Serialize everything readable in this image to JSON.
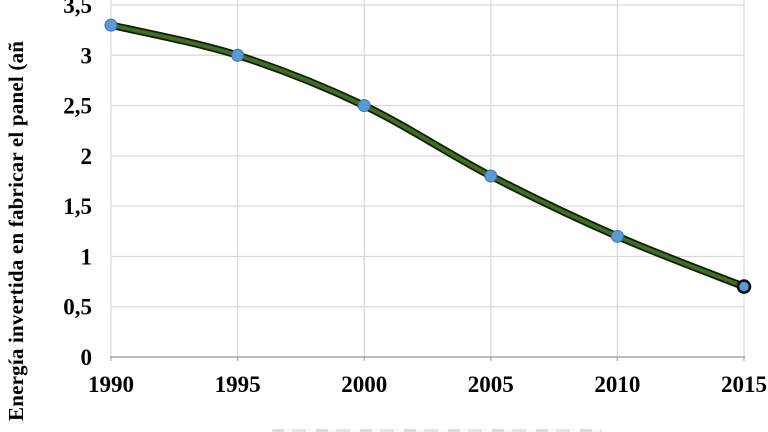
{
  "chart_data": {
    "type": "line",
    "title": "",
    "xlabel": "",
    "ylabel": "Energía invertida en fabricar el panel (añ",
    "x": [
      1990,
      1995,
      2000,
      2005,
      2010,
      2015
    ],
    "values": [
      3.3,
      3.0,
      2.5,
      1.8,
      1.2,
      0.7
    ],
    "xlim": [
      1990,
      2015
    ],
    "ylim": [
      0,
      3.5
    ],
    "x_tick_labels": [
      "1990",
      "1995",
      "2000",
      "2005",
      "2010",
      "2015"
    ],
    "y_ticks": [
      0,
      0.5,
      1,
      1.5,
      2,
      2.5,
      3,
      3.5
    ],
    "y_tick_labels": [
      "0",
      "0,5",
      "1",
      "1,5",
      "2",
      "2,5",
      "3",
      "3,5"
    ],
    "grid": true,
    "legend": false,
    "smooth": true,
    "colors": {
      "line": "#3f6d22",
      "line_outline": "#101c08",
      "marker_fill": "#5b9bd5",
      "marker_edge": "#3a72ab",
      "last_marker_edge": "#111111",
      "gridline": "#d9d9d9",
      "axis_line": "#a6a6a6",
      "text": "#000000",
      "background": "#ffffff"
    }
  }
}
